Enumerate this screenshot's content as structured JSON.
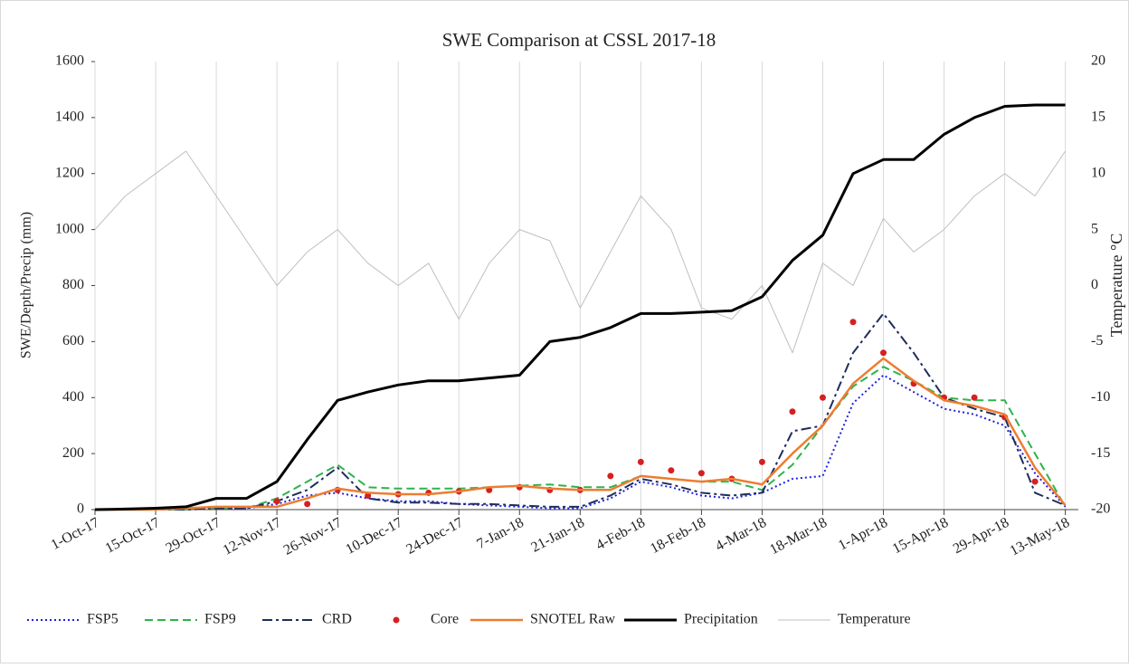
{
  "chart_data": {
    "type": "line",
    "title": "SWE Comparison at CSSL 2017-18",
    "y_label": "SWE/Depth/Precip (mm)",
    "y2_label": "Temperature °C",
    "x": [
      "1-Oct-17",
      "8-Oct-17",
      "15-Oct-17",
      "22-Oct-17",
      "29-Oct-17",
      "5-Nov-17",
      "12-Nov-17",
      "19-Nov-17",
      "26-Nov-17",
      "3-Dec-17",
      "10-Dec-17",
      "17-Dec-17",
      "24-Dec-17",
      "31-Dec-17",
      "7-Jan-18",
      "14-Jan-18",
      "21-Jan-18",
      "28-Jan-18",
      "4-Feb-18",
      "11-Feb-18",
      "18-Feb-18",
      "25-Feb-18",
      "4-Mar-18",
      "11-Mar-18",
      "18-Mar-18",
      "25-Mar-18",
      "1-Apr-18",
      "8-Apr-18",
      "15-Apr-18",
      "22-Apr-18",
      "29-Apr-18",
      "6-May-18",
      "13-May-18"
    ],
    "xlim": [
      "1-Oct-17",
      "16-May-18"
    ],
    "xticks": [
      "1-Oct-17",
      "15-Oct-17",
      "29-Oct-17",
      "12-Nov-17",
      "26-Nov-17",
      "10-Dec-17",
      "24-Dec-17",
      "7-Jan-18",
      "21-Jan-18",
      "4-Feb-18",
      "18-Feb-18",
      "4-Mar-18",
      "18-Mar-18",
      "1-Apr-18",
      "15-Apr-18",
      "29-Apr-18",
      "13-May-18"
    ],
    "ylim": [
      0,
      1600
    ],
    "yticks": [
      0,
      200,
      400,
      600,
      800,
      1000,
      1200,
      1400,
      1600
    ],
    "y2lim": [
      -20,
      20
    ],
    "y2ticks": [
      -20,
      -15,
      -10,
      -5,
      0,
      5,
      10,
      15,
      20
    ],
    "grid": "x",
    "legend": "bottom",
    "series": [
      {
        "name": "FSP5",
        "color": "#1f1fe0",
        "style": "dotted",
        "values": [
          0,
          0,
          0,
          0,
          5,
          5,
          20,
          50,
          60,
          40,
          30,
          30,
          20,
          15,
          10,
          5,
          5,
          40,
          100,
          80,
          50,
          40,
          60,
          110,
          120,
          380,
          480,
          420,
          360,
          340,
          300,
          130,
          10
        ]
      },
      {
        "name": "FSP9",
        "color": "#2eb34a",
        "style": "dashed",
        "values": [
          0,
          0,
          0,
          0,
          5,
          5,
          40,
          100,
          160,
          80,
          75,
          75,
          75,
          80,
          85,
          90,
          80,
          80,
          120,
          110,
          100,
          100,
          70,
          160,
          300,
          440,
          510,
          460,
          400,
          390,
          390,
          200,
          10
        ]
      },
      {
        "name": "CRD",
        "color": "#1f2d5c",
        "style": "dashdot",
        "values": [
          0,
          0,
          0,
          0,
          5,
          5,
          30,
          70,
          150,
          40,
          25,
          25,
          20,
          20,
          15,
          10,
          10,
          50,
          110,
          90,
          60,
          50,
          60,
          280,
          300,
          560,
          700,
          560,
          400,
          360,
          330,
          60,
          15
        ]
      },
      {
        "name": "Core",
        "color": "#d62020",
        "style": "dots",
        "values": [
          null,
          null,
          null,
          null,
          null,
          null,
          30,
          20,
          70,
          50,
          55,
          60,
          65,
          70,
          80,
          70,
          70,
          120,
          170,
          140,
          130,
          110,
          170,
          350,
          400,
          670,
          560,
          450,
          400,
          400,
          330,
          100,
          null
        ]
      },
      {
        "name": "SNOTEL Raw",
        "color": "#ed7d31",
        "style": "solid",
        "width": 2.5,
        "values": [
          0,
          0,
          0,
          5,
          10,
          10,
          10,
          40,
          75,
          60,
          55,
          55,
          65,
          80,
          85,
          75,
          70,
          70,
          120,
          110,
          100,
          110,
          90,
          200,
          300,
          450,
          540,
          460,
          390,
          370,
          340,
          150,
          15
        ]
      },
      {
        "name": "Precipitation",
        "color": "#000000",
        "style": "solid",
        "width": 3,
        "values": [
          0,
          2,
          5,
          10,
          40,
          40,
          100,
          250,
          390,
          420,
          445,
          460,
          460,
          470,
          480,
          600,
          615,
          650,
          700,
          700,
          705,
          710,
          760,
          890,
          980,
          1200,
          1250,
          1250,
          1340,
          1400,
          1440,
          1445,
          1445
        ]
      },
      {
        "name": "Temperature",
        "color": "#bfbfbf",
        "style": "solid",
        "width": 1,
        "axis": "y2",
        "values": [
          5,
          8,
          10,
          12,
          8,
          4,
          0,
          3,
          5,
          2,
          0,
          2,
          -3,
          2,
          5,
          4,
          -2,
          3,
          8,
          5,
          -2,
          -3,
          0,
          -6,
          2,
          0,
          6,
          3,
          5,
          8,
          10,
          8,
          12
        ]
      }
    ]
  }
}
